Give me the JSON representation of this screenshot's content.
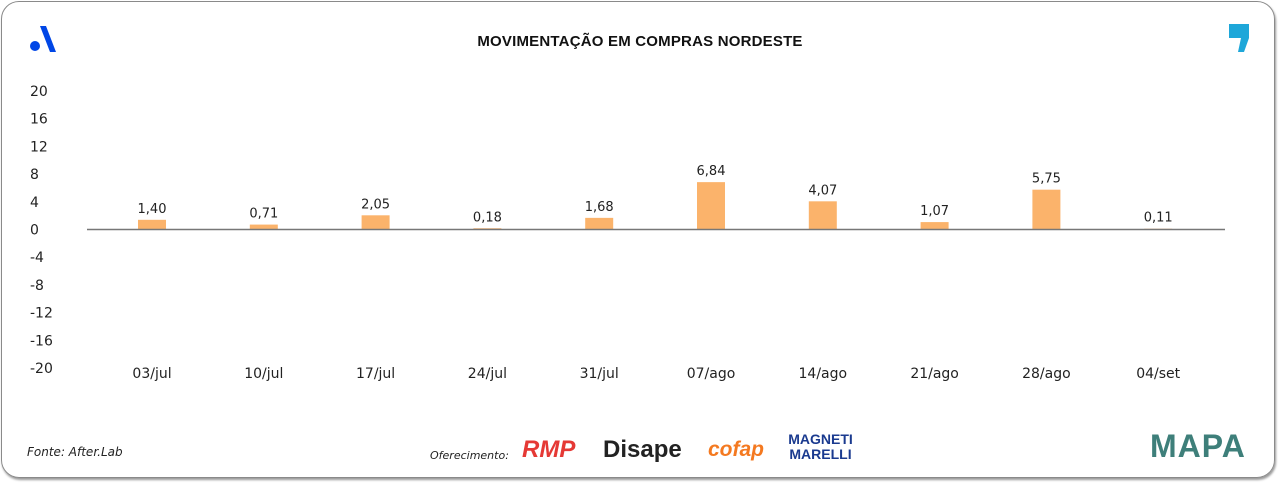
{
  "chart_data": {
    "type": "bar",
    "title": "MOVIMENTAÇÃO EM COMPRAS NORDESTE",
    "categories": [
      "03/jul",
      "10/jul",
      "17/jul",
      "24/jul",
      "31/jul",
      "07/ago",
      "14/ago",
      "21/ago",
      "28/ago",
      "04/set"
    ],
    "values": [
      1.4,
      0.71,
      2.05,
      0.18,
      1.68,
      6.84,
      4.07,
      1.07,
      5.75,
      0.11
    ],
    "value_labels": [
      "1,40",
      "0,71",
      "2,05",
      "0,18",
      "1,68",
      "6,84",
      "4,07",
      "1,07",
      "5,75",
      "0,11"
    ],
    "yticks": [
      "20",
      "16",
      "12",
      "8",
      "4",
      "0",
      "-4",
      "-8",
      "-12",
      "-16",
      "-20"
    ],
    "ylim": [
      -20,
      20
    ],
    "xlabel": "",
    "ylabel": "",
    "bar_color": "#FBB36B",
    "grid": false
  },
  "footer": {
    "source": "Fonte: After.Lab",
    "sponsor_label": "Oferecimento:",
    "sponsors": [
      "RMP",
      "Disape",
      "cofap",
      "MAGNETI MARELLI"
    ],
    "brand": "MAPA"
  }
}
